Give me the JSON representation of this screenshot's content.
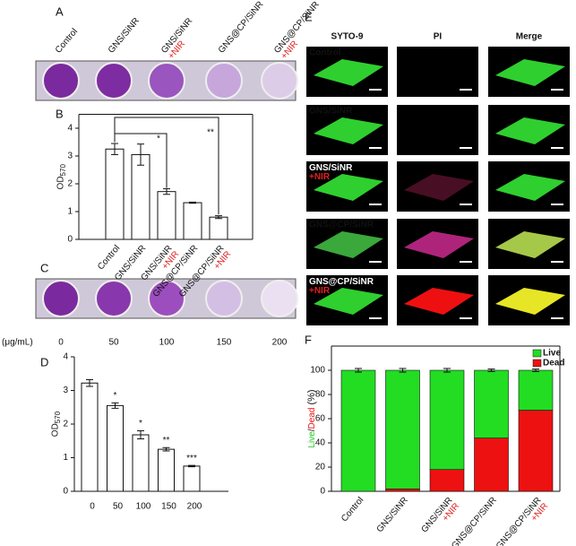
{
  "panel_labels": [
    "A",
    "B",
    "C",
    "D",
    "E",
    "F"
  ],
  "panel_a": {
    "labels": [
      "Control",
      "GNS/SiNR",
      "GNS/SiNR +NIR",
      "GNS@CP/SiNR",
      "GNS@CP/SiNR +NIR"
    ]
  },
  "panel_c": {
    "unit": "(μg/mL)",
    "labels": [
      "0",
      "50",
      "100",
      "150",
      "200"
    ]
  },
  "panel_e": {
    "columns": [
      "SYTO-9",
      "PI",
      "Merge"
    ],
    "rows": [
      "Control",
      "GNS/SiNR",
      "GNS/SiNR +NIR",
      "GNS@CP/SiNR",
      "GNS@CP/SiNR +NIR"
    ]
  },
  "chart_data": [
    {
      "type": "bar",
      "y_label": "OD",
      "y_label_sub": "570",
      "categories": [
        "Control",
        "GNS/SiNR",
        "GNS/SiNR +NIR",
        "GNS@CP/SiNR",
        "GNS@CP/SiNR +NIR"
      ],
      "values": [
        3.25,
        3.05,
        1.72,
        1.32,
        0.8
      ],
      "errors": [
        0.2,
        0.38,
        0.1,
        0.02,
        0.05
      ],
      "ylim": [
        0,
        4.5
      ],
      "yticks": [
        0,
        1,
        2,
        3,
        4
      ],
      "color": "#ffffff",
      "annotations": [
        "*",
        "**"
      ]
    },
    {
      "type": "bar",
      "y_label": "OD",
      "y_label_sub": "570",
      "categories": [
        "0",
        "50",
        "100",
        "150",
        "200"
      ],
      "values": [
        3.22,
        2.55,
        1.68,
        1.25,
        0.75
      ],
      "errors": [
        0.1,
        0.08,
        0.12,
        0.05,
        0.02
      ],
      "significance": [
        null,
        "*",
        "*",
        "**",
        "***"
      ],
      "ylim": [
        0,
        4
      ],
      "yticks": [
        0,
        1,
        2,
        3,
        4
      ],
      "color": "#ffffff"
    },
    {
      "type": "stacked_bar",
      "y_label": "Live/Dead (%)",
      "categories": [
        "Control",
        "GNS/SiNR",
        "GNS/SiNR +NIR",
        "GNS@CP/SiNR",
        "GNS@CP/SiNR +NIR"
      ],
      "series": [
        {
          "name": "Live",
          "color": "#22dd22",
          "values": [
            100,
            98,
            82,
            56,
            33
          ]
        },
        {
          "name": "Dead",
          "color": "#ee1111",
          "values": [
            0,
            2,
            18,
            44,
            67
          ]
        }
      ],
      "errors": [
        1.5,
        1.5,
        1.5,
        1,
        1
      ],
      "ylim": [
        0,
        120
      ],
      "yticks": [
        0,
        20,
        40,
        60,
        80,
        100
      ],
      "legend": "upper right"
    }
  ]
}
